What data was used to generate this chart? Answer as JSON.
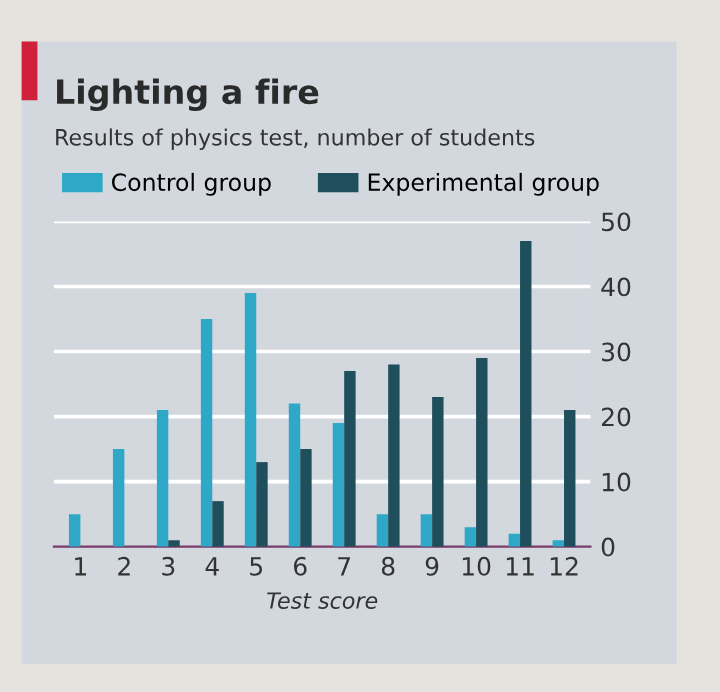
{
  "chart_data": {
    "type": "bar",
    "title": "Lighting a fire",
    "subtitle": "Results of physics test, number of students",
    "xlabel": "Test score",
    "categories": [
      "1",
      "2",
      "3",
      "4",
      "5",
      "6",
      "7",
      "8",
      "9",
      "10",
      "11",
      "12"
    ],
    "series": [
      {
        "name": "Control group",
        "color": "#2fa8c8",
        "values": [
          5,
          15,
          21,
          35,
          39,
          22,
          19,
          5,
          5,
          3,
          2,
          1
        ]
      },
      {
        "name": "Experimental group",
        "color": "#1f4e5c",
        "values": [
          0,
          0,
          1,
          7,
          13,
          15,
          27,
          28,
          23,
          29,
          47,
          21
        ]
      }
    ],
    "ylim": [
      0,
      50
    ],
    "yticks": [
      0,
      10,
      20,
      30,
      40,
      50
    ],
    "grid": "y",
    "legend": "top left"
  }
}
